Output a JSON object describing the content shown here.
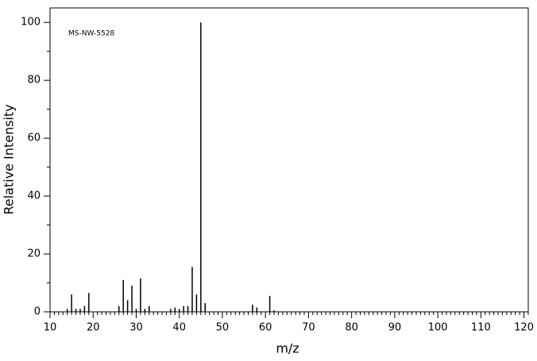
{
  "chart_data": {
    "type": "bar",
    "annotation": "MS-NW-5528",
    "xlabel": "m/z",
    "ylabel": "Relative Intensity",
    "x": [
      14,
      15,
      16,
      17,
      18,
      19,
      26,
      27,
      28,
      29,
      30,
      31,
      32,
      33,
      38,
      39,
      40,
      41,
      42,
      43,
      44,
      45,
      46,
      57,
      58,
      61,
      62
    ],
    "values": [
      1,
      6,
      1,
      1,
      2,
      6.5,
      2,
      11,
      4,
      9,
      1,
      11.5,
      1,
      2,
      1,
      1.5,
      1,
      2,
      2,
      15.5,
      6,
      100,
      3,
      2.5,
      1.5,
      5.5,
      0.5
    ],
    "color": "#000000",
    "xlim": [
      10,
      121
    ],
    "xticks": [
      10,
      20,
      30,
      40,
      50,
      60,
      70,
      80,
      90,
      100,
      110,
      120
    ],
    "ylim": [
      0,
      105
    ],
    "yticks": [
      0,
      20,
      40,
      60,
      80,
      100
    ]
  }
}
